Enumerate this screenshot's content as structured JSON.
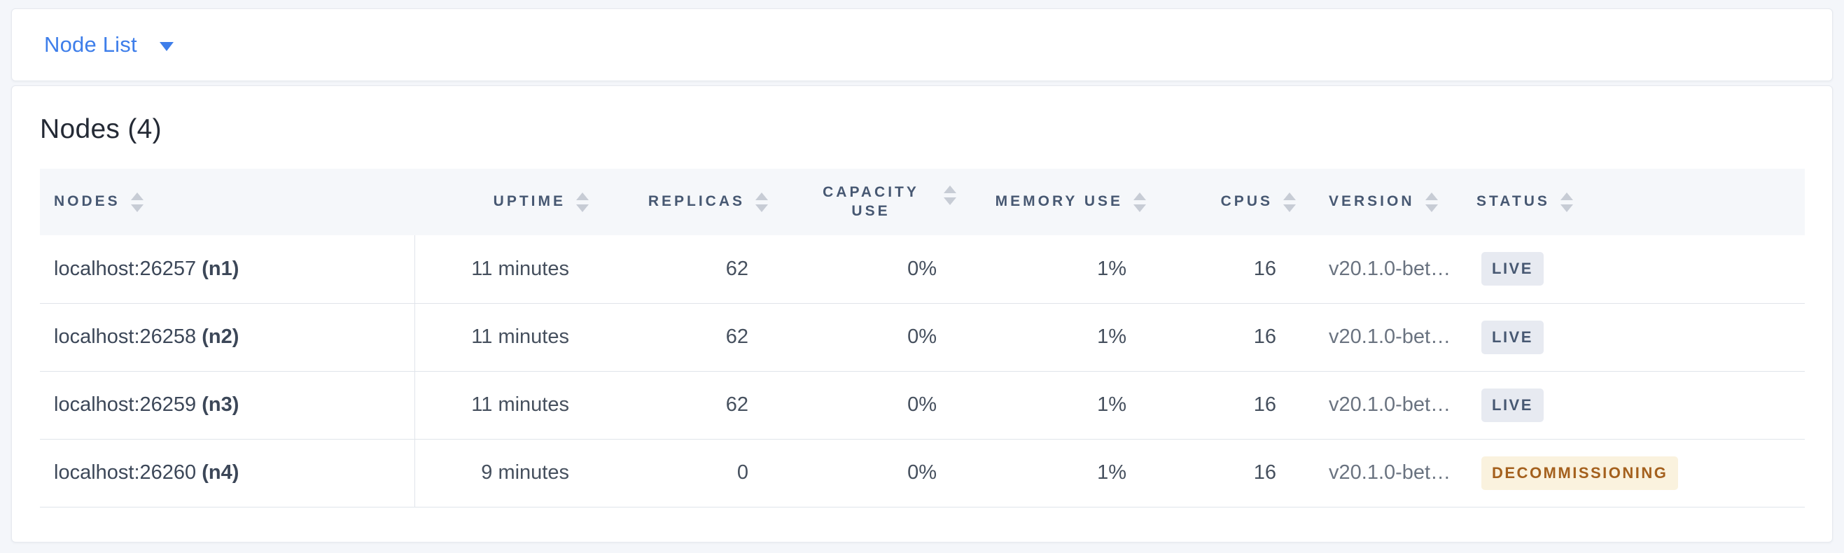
{
  "view_selector": {
    "label": "Node List",
    "icon": "caret-down-icon"
  },
  "summary": {
    "title": "Nodes (4)"
  },
  "table": {
    "columns": [
      {
        "id": "nodes",
        "label": "NODES"
      },
      {
        "id": "uptime",
        "label": "UPTIME"
      },
      {
        "id": "replicas",
        "label": "REPLICAS"
      },
      {
        "id": "capacity-use",
        "label": "CAPACITY USE"
      },
      {
        "id": "memory-use",
        "label": "MEMORY USE"
      },
      {
        "id": "cpus",
        "label": "CPUS"
      },
      {
        "id": "version",
        "label": "VERSION"
      },
      {
        "id": "status",
        "label": "STATUS"
      }
    ],
    "rows": [
      {
        "node": "localhost:26257",
        "node_id": "(n1)",
        "uptime": "11 minutes",
        "replicas": "62",
        "capacity_use": "0%",
        "memory_use": "1%",
        "cpus": "16",
        "version": "v20.1.0-bet…",
        "status": "LIVE",
        "status_type": "live"
      },
      {
        "node": "localhost:26258",
        "node_id": "(n2)",
        "uptime": "11 minutes",
        "replicas": "62",
        "capacity_use": "0%",
        "memory_use": "1%",
        "cpus": "16",
        "version": "v20.1.0-bet…",
        "status": "LIVE",
        "status_type": "live"
      },
      {
        "node": "localhost:26259",
        "node_id": "(n3)",
        "uptime": "11 minutes",
        "replicas": "62",
        "capacity_use": "0%",
        "memory_use": "1%",
        "cpus": "16",
        "version": "v20.1.0-bet…",
        "status": "LIVE",
        "status_type": "live"
      },
      {
        "node": "localhost:26260",
        "node_id": "(n4)",
        "uptime": "9 minutes",
        "replicas": "0",
        "capacity_use": "0%",
        "memory_use": "1%",
        "cpus": "16",
        "version": "v20.1.0-bet…",
        "status": "DECOMMISSIONING",
        "status_type": "decommissioning"
      }
    ]
  },
  "colors": {
    "accent_blue": "#3E7EEA",
    "header_text": "#475872",
    "status_live_bg": "#E7EAF1",
    "status_live_text": "#475872",
    "status_decommissioning_bg": "#FAF2DE",
    "status_decommissioning_text": "#A4601D"
  }
}
